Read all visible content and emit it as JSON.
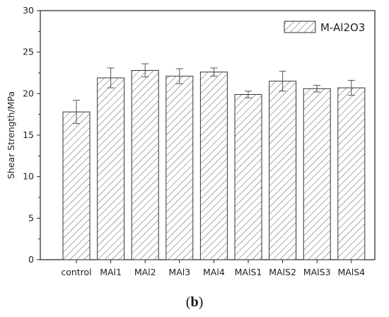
{
  "caption": {
    "open": "(",
    "letter": "b",
    "close": ")"
  },
  "chart_data": {
    "type": "bar",
    "title": "",
    "xlabel": "",
    "ylabel": "Shear Strength/MPa",
    "ylim": [
      0,
      30
    ],
    "yticks": [
      0,
      5,
      10,
      15,
      20,
      25,
      30
    ],
    "grid": false,
    "legend_position": "top-right",
    "bar_pattern": "diagonal-hatch",
    "bar_color": "#ffffff",
    "edge_color": "#333333",
    "categories": [
      "control",
      "MAl1",
      "MAl2",
      "MAl3",
      "MAl4",
      "MAlS1",
      "MAlS2",
      "MAlS3",
      "MAlS4"
    ],
    "series": [
      {
        "name": "M-Al2O3",
        "values": [
          17.8,
          21.9,
          22.8,
          22.1,
          22.6,
          19.9,
          21.5,
          20.6,
          20.7
        ],
        "errors": [
          1.4,
          1.2,
          0.8,
          0.9,
          0.5,
          0.4,
          1.2,
          0.4,
          0.9
        ]
      }
    ]
  }
}
